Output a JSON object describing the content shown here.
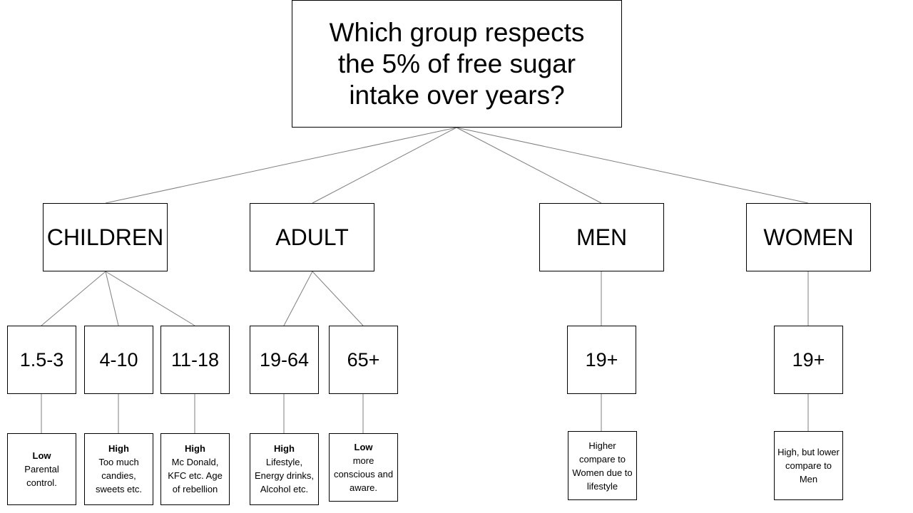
{
  "question": "Which group respects the 5% of free sugar intake over years?",
  "groups": {
    "children": {
      "label": "CHILDREN",
      "ages": [
        {
          "label": "1.5-3",
          "level": "Low",
          "note": "Parental control."
        },
        {
          "label": "4-10",
          "level": "High",
          "note": "Too much candies, sweets etc."
        },
        {
          "label": "11-18",
          "level": "High",
          "note": "Mc Donald, KFC etc. Age of rebellion"
        }
      ]
    },
    "adult": {
      "label": "ADULT",
      "ages": [
        {
          "label": "19-64",
          "level": "High",
          "note": "Lifestyle, Energy drinks, Alcohol etc."
        },
        {
          "label": "65+",
          "level": "Low",
          "note": "more conscious and aware."
        }
      ]
    },
    "men": {
      "label": "MEN",
      "ages": [
        {
          "label": "19+",
          "level": "",
          "note": "Higher compare to Women due to lifestyle"
        }
      ]
    },
    "women": {
      "label": "WOMEN",
      "ages": [
        {
          "label": "19+",
          "level": "",
          "note": "High, but lower compare to Men"
        }
      ]
    }
  }
}
